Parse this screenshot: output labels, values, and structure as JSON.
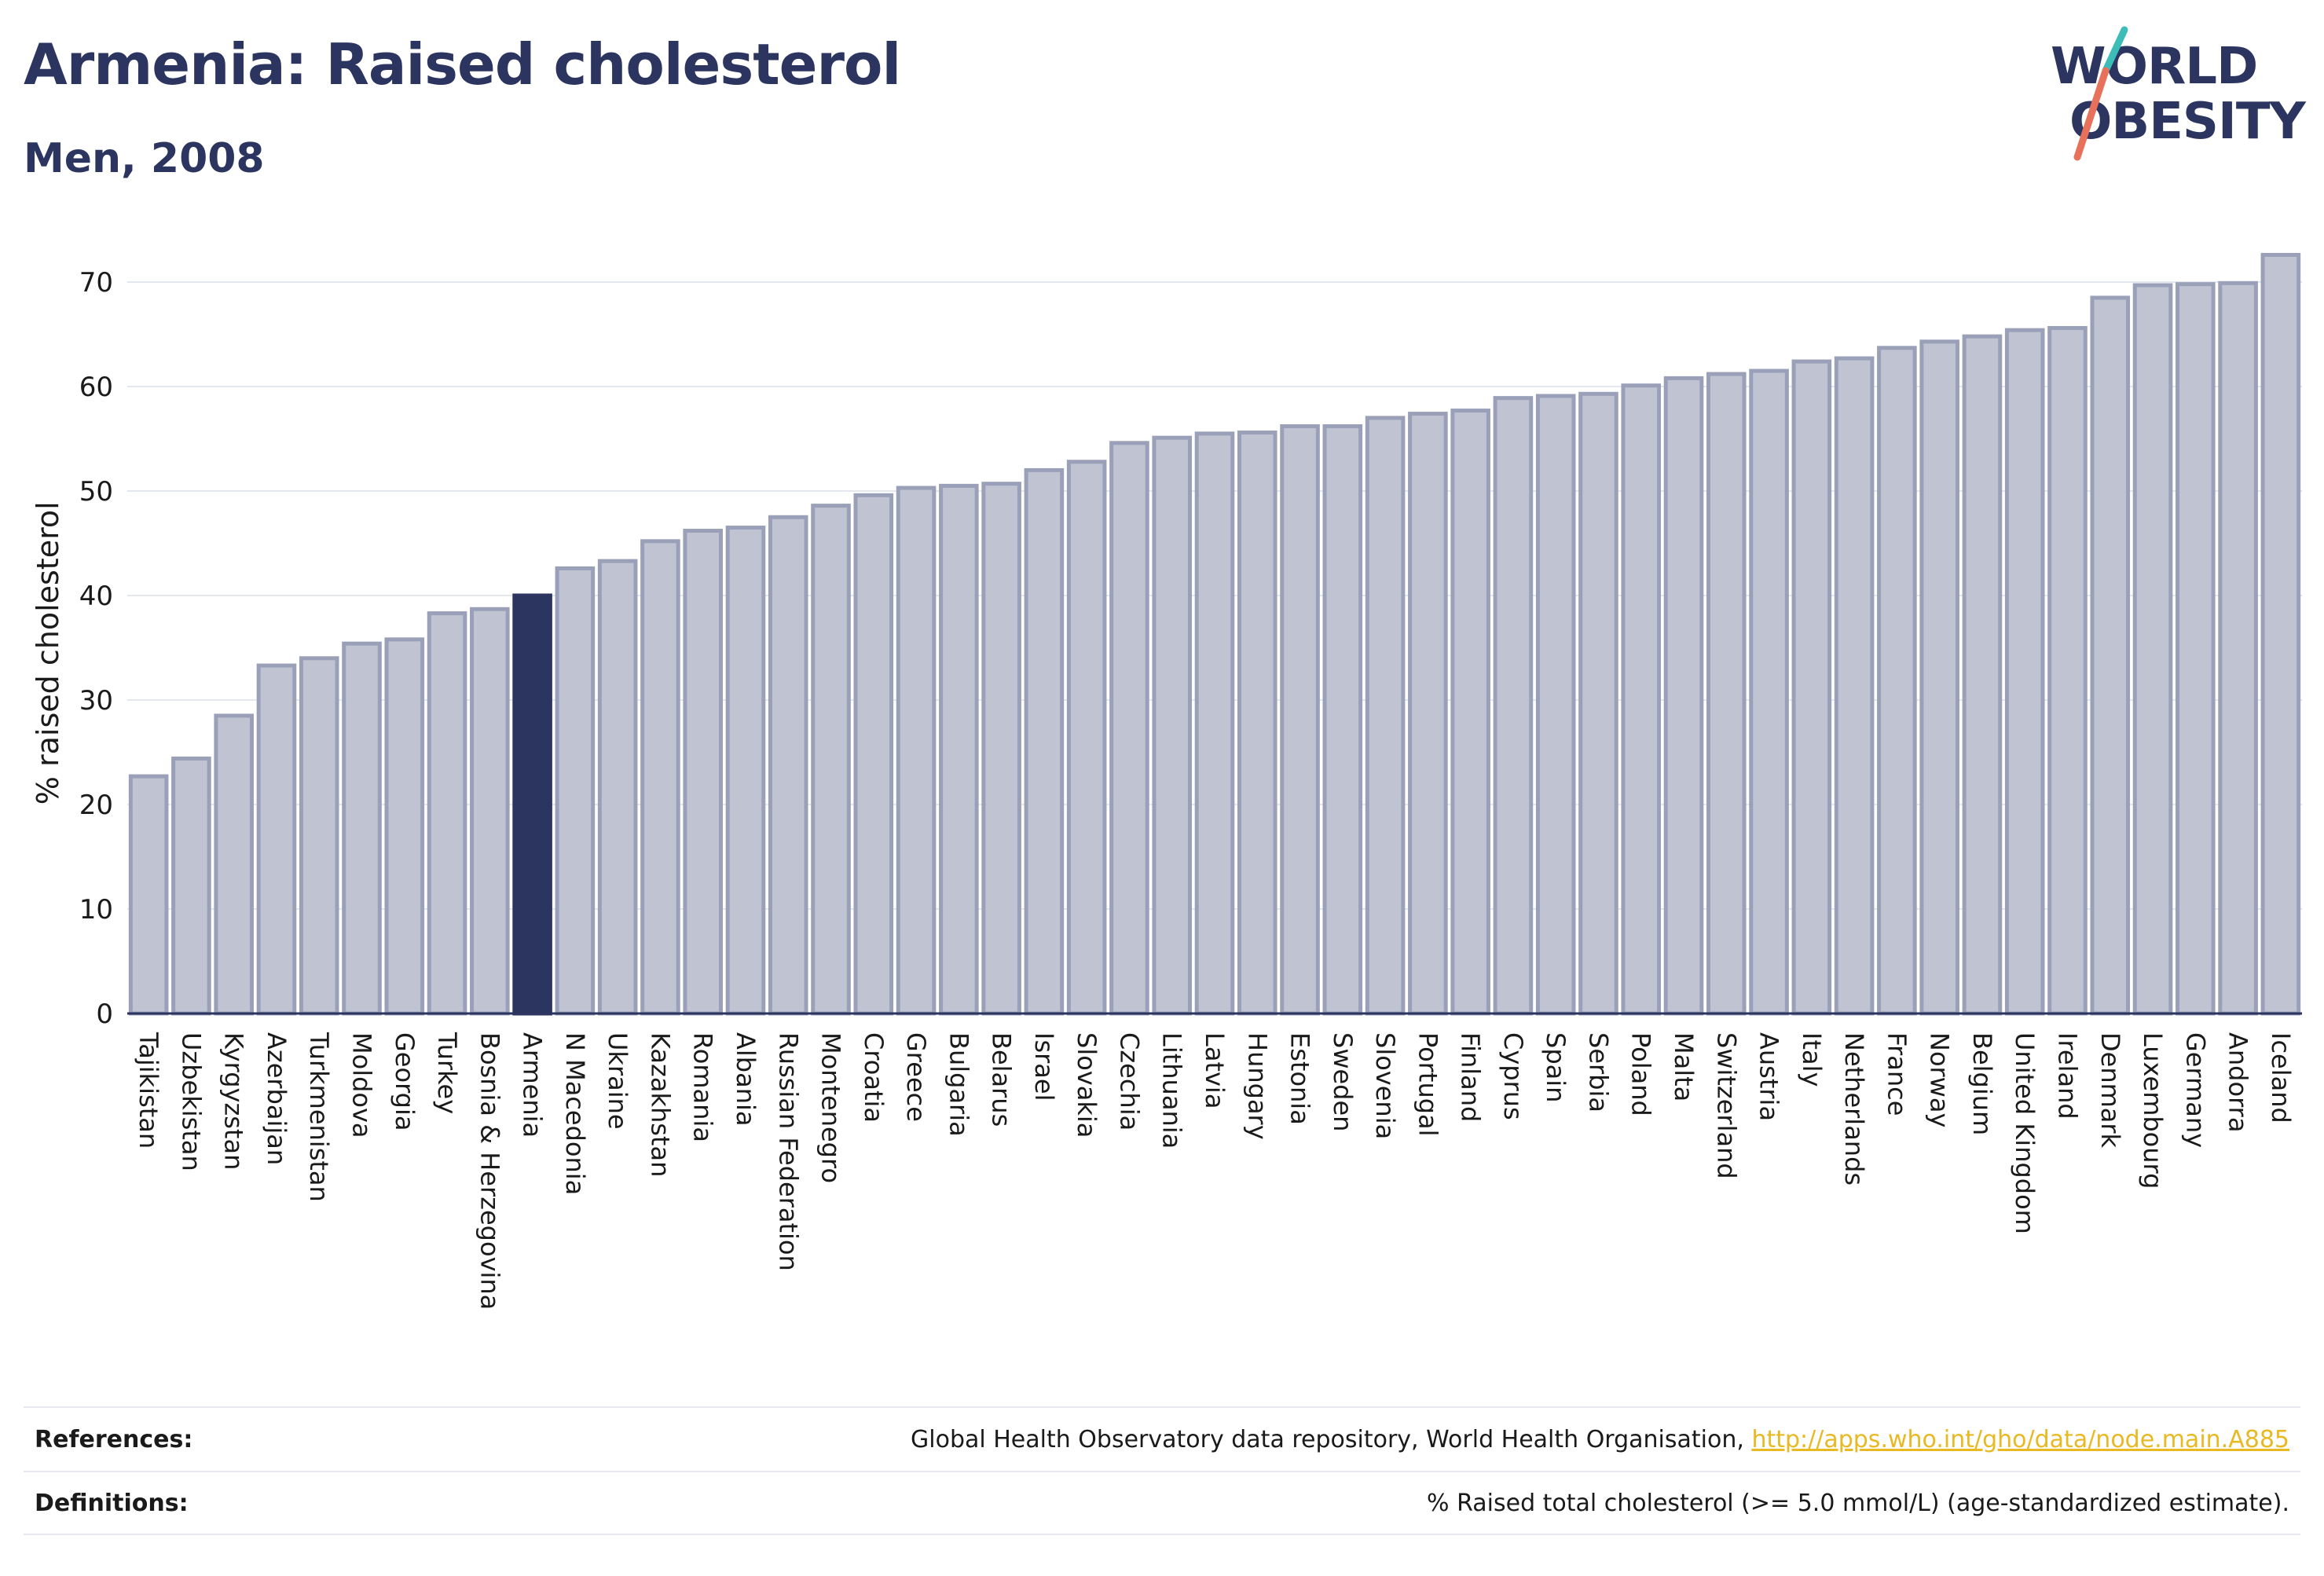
{
  "title": "Armenia: Raised cholesterol",
  "subtitle": "Men, 2008",
  "logo": {
    "line1": "WORLD",
    "line2": "OBESITY"
  },
  "colors": {
    "highlight": "#2b3560",
    "bar_fill": "#bfc3d2",
    "bar_stroke": "#9aa0b8",
    "grid": "#e5e7ee",
    "accent_teal": "#3dbdb8",
    "accent_red": "#e8715b"
  },
  "chart_data": {
    "type": "bar",
    "title": "Armenia: Raised cholesterol",
    "subtitle": "Men, 2008",
    "xlabel": "",
    "ylabel": "% raised cholesterol",
    "ylim": [
      0,
      75
    ],
    "yticks": [
      0,
      10,
      20,
      30,
      40,
      50,
      60,
      70
    ],
    "grid": true,
    "highlight": "Armenia",
    "categories": [
      "Tajikistan",
      "Uzbekistan",
      "Kyrgyzstan",
      "Azerbaijan",
      "Turkmenistan",
      "Moldova",
      "Georgia",
      "Turkey",
      "Bosnia & Herzegovina",
      "Armenia",
      "N Macedonia",
      "Ukraine",
      "Kazakhstan",
      "Romania",
      "Albania",
      "Russian Federation",
      "Montenegro",
      "Croatia",
      "Greece",
      "Bulgaria",
      "Belarus",
      "Israel",
      "Slovakia",
      "Czechia",
      "Lithuania",
      "Latvia",
      "Hungary",
      "Estonia",
      "Sweden",
      "Slovenia",
      "Portugal",
      "Finland",
      "Cyprus",
      "Spain",
      "Serbia",
      "Poland",
      "Malta",
      "Switzerland",
      "Austria",
      "Italy",
      "Netherlands",
      "France",
      "Norway",
      "Belgium",
      "United Kingdom",
      "Ireland",
      "Denmark",
      "Luxembourg",
      "Germany",
      "Andorra",
      "Iceland"
    ],
    "values": [
      22.7,
      24.4,
      28.5,
      33.3,
      34.0,
      35.4,
      35.8,
      38.3,
      38.7,
      40.0,
      42.6,
      43.3,
      45.2,
      46.2,
      46.5,
      47.5,
      48.6,
      49.6,
      50.3,
      50.5,
      50.7,
      52.0,
      52.8,
      54.6,
      55.1,
      55.5,
      55.6,
      56.2,
      56.2,
      57.0,
      57.4,
      57.7,
      58.9,
      59.1,
      59.3,
      60.1,
      60.8,
      61.2,
      61.5,
      62.4,
      62.7,
      63.7,
      64.3,
      64.8,
      65.4,
      65.6,
      68.5,
      69.7,
      69.8,
      69.9,
      72.6
    ]
  },
  "references": {
    "label": "References:",
    "text": "Global Health Observatory data repository, World Health Organisation, ",
    "link": "http://apps.who.int/gho/data/node.main.A885"
  },
  "definitions": {
    "label": "Definitions:",
    "text": "% Raised total cholesterol (>= 5.0 mmol/L) (age-standardized estimate)."
  }
}
